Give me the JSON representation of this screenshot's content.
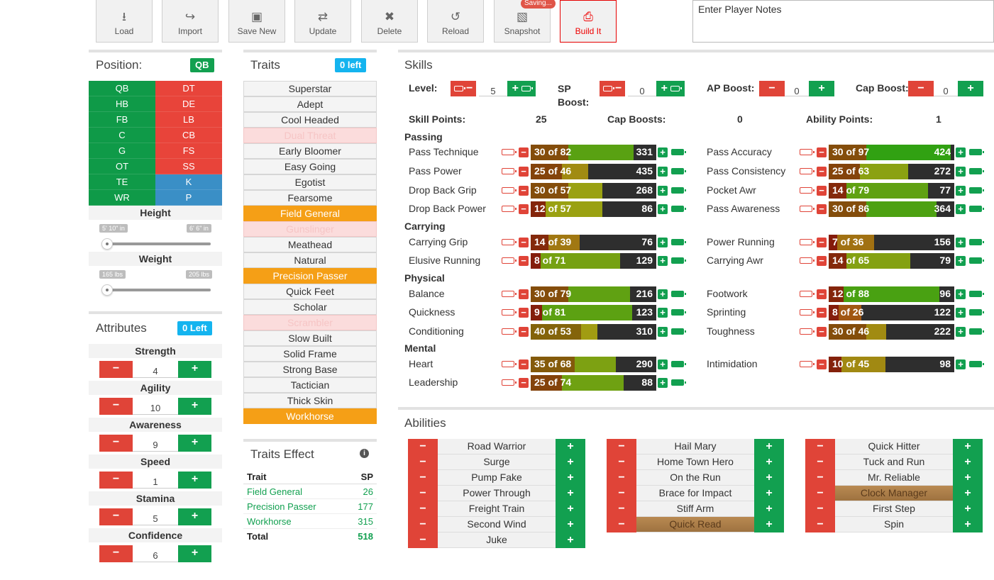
{
  "toolbar": {
    "load": "Load",
    "import": "Import",
    "save_new": "Save New",
    "update": "Update",
    "delete": "Delete",
    "reload": "Reload",
    "snapshot": "Snapshot",
    "build": "Build It",
    "saving": "Saving..."
  },
  "notes": {
    "placeholder": "Enter Player Notes"
  },
  "position": {
    "title": "Position:",
    "selected": "QB",
    "list": [
      [
        "QB",
        "DT"
      ],
      [
        "HB",
        "DE"
      ],
      [
        "FB",
        "LB"
      ],
      [
        "C",
        "CB"
      ],
      [
        "G",
        "FS"
      ],
      [
        "OT",
        "SS"
      ],
      [
        "TE",
        "K"
      ],
      [
        "WR",
        "P"
      ]
    ]
  },
  "height": {
    "label": "Height",
    "min": "5' 10\" in",
    "max": "6' 6\" in"
  },
  "weight": {
    "label": "Weight",
    "min": "165 lbs",
    "max": "205 lbs"
  },
  "attributes": {
    "title": "Attributes",
    "left": "0 Left",
    "items": [
      {
        "label": "Strength",
        "value": "4"
      },
      {
        "label": "Agility",
        "value": "10"
      },
      {
        "label": "Awareness",
        "value": "9"
      },
      {
        "label": "Speed",
        "value": "1"
      },
      {
        "label": "Stamina",
        "value": "5"
      },
      {
        "label": "Confidence",
        "value": "6"
      }
    ]
  },
  "traits": {
    "title": "Traits",
    "left": "0 left",
    "items": [
      {
        "name": "Superstar",
        "state": "n"
      },
      {
        "name": "Adept",
        "state": "n"
      },
      {
        "name": "Cool Headed",
        "state": "n"
      },
      {
        "name": "Dual Threat",
        "state": "d"
      },
      {
        "name": "Early Bloomer",
        "state": "n"
      },
      {
        "name": "Easy Going",
        "state": "n"
      },
      {
        "name": "Egotist",
        "state": "n"
      },
      {
        "name": "Fearsome",
        "state": "n"
      },
      {
        "name": "Field General",
        "state": "s"
      },
      {
        "name": "Gunslinger",
        "state": "d"
      },
      {
        "name": "Meathead",
        "state": "n"
      },
      {
        "name": "Natural",
        "state": "n"
      },
      {
        "name": "Precision Passer",
        "state": "s"
      },
      {
        "name": "Quick Feet",
        "state": "n"
      },
      {
        "name": "Scholar",
        "state": "n"
      },
      {
        "name": "Scrambler",
        "state": "d"
      },
      {
        "name": "Slow Built",
        "state": "n"
      },
      {
        "name": "Solid Frame",
        "state": "n"
      },
      {
        "name": "Strong Base",
        "state": "n"
      },
      {
        "name": "Tactician",
        "state": "n"
      },
      {
        "name": "Thick Skin",
        "state": "n"
      },
      {
        "name": "Workhorse",
        "state": "s"
      }
    ]
  },
  "traits_effect": {
    "title": "Traits Effect",
    "col_trait": "Trait",
    "col_sp": "SP",
    "rows": [
      {
        "trait": "Field General",
        "sp": "26"
      },
      {
        "trait": "Precision Passer",
        "sp": "177"
      },
      {
        "trait": "Workhorse",
        "sp": "315"
      }
    ],
    "total_label": "Total",
    "total": "518"
  },
  "skills": {
    "title": "Skills",
    "level_label": "Level:",
    "level": "5",
    "sp_boost_label": "SP Boost:",
    "sp_boost": "0",
    "ap_boost_label": "AP Boost:",
    "ap_boost": "0",
    "cap_boost_label": "Cap Boost:",
    "cap_boost": "0",
    "skill_points_label": "Skill Points:",
    "skill_points": "25",
    "cap_boosts_label": "Cap Boosts:",
    "cap_boosts": "0",
    "ability_points_label": "Ability Points:",
    "ability_points": "1",
    "categories": [
      "Passing",
      "Carrying",
      "Physical",
      "Mental"
    ],
    "rows": [
      {
        "name": "Pass Technique",
        "cur": 30,
        "cap": 82,
        "cost": "331",
        "col": 0,
        "y": 204
      },
      {
        "name": "Pass Accuracy",
        "cur": 30,
        "cap": 97,
        "cost": "424",
        "col": 1,
        "y": 204
      },
      {
        "name": "Pass Power",
        "cur": 25,
        "cap": 46,
        "cost": "435",
        "col": 0,
        "y": 231
      },
      {
        "name": "Pass Consistency",
        "cur": 25,
        "cap": 63,
        "cost": "272",
        "col": 1,
        "y": 231
      },
      {
        "name": "Drop Back Grip",
        "cur": 30,
        "cap": 57,
        "cost": "268",
        "col": 0,
        "y": 258
      },
      {
        "name": "Pocket Awr",
        "cur": 14,
        "cap": 79,
        "cost": "77",
        "col": 1,
        "y": 258
      },
      {
        "name": "Drop Back Power",
        "cur": 12,
        "cap": 57,
        "cost": "86",
        "col": 0,
        "y": 284
      },
      {
        "name": "Pass Awareness",
        "cur": 30,
        "cap": 86,
        "cost": "364",
        "col": 1,
        "y": 284
      },
      {
        "name": "Carrying Grip",
        "cur": 14,
        "cap": 39,
        "cost": "76",
        "col": 0,
        "y": 331
      },
      {
        "name": "Power Running",
        "cur": 7,
        "cap": 36,
        "cost": "156",
        "col": 1,
        "y": 331
      },
      {
        "name": "Elusive Running",
        "cur": 8,
        "cap": 71,
        "cost": "129",
        "col": 0,
        "y": 357
      },
      {
        "name": "Carrying Awr",
        "cur": 14,
        "cap": 65,
        "cost": "79",
        "col": 1,
        "y": 357
      },
      {
        "name": "Balance",
        "cur": 30,
        "cap": 79,
        "cost": "216",
        "col": 0,
        "y": 404
      },
      {
        "name": "Footwork",
        "cur": 12,
        "cap": 88,
        "cost": "96",
        "col": 1,
        "y": 404
      },
      {
        "name": "Quickness",
        "cur": 9,
        "cap": 81,
        "cost": "123",
        "col": 0,
        "y": 430
      },
      {
        "name": "Sprinting",
        "cur": 8,
        "cap": 26,
        "cost": "122",
        "col": 1,
        "y": 430
      },
      {
        "name": "Conditioning",
        "cur": 40,
        "cap": 53,
        "cost": "310",
        "col": 0,
        "y": 457
      },
      {
        "name": "Toughness",
        "cur": 30,
        "cap": 46,
        "cost": "222",
        "col": 1,
        "y": 457
      },
      {
        "name": "Heart",
        "cur": 35,
        "cap": 68,
        "cost": "290",
        "col": 0,
        "y": 503
      },
      {
        "name": "Intimidation",
        "cur": 10,
        "cap": 45,
        "cost": "98",
        "col": 1,
        "y": 503
      },
      {
        "name": "Leadership",
        "cur": 25,
        "cap": 74,
        "cost": "88",
        "col": 0,
        "y": 529
      }
    ]
  },
  "abilities": {
    "title": "Abilities",
    "cols": [
      [
        {
          "name": "Road Warrior"
        },
        {
          "name": "Surge"
        },
        {
          "name": "Pump Fake"
        },
        {
          "name": "Power Through"
        },
        {
          "name": "Freight Train"
        },
        {
          "name": "Second Wind"
        },
        {
          "name": "Juke"
        }
      ],
      [
        {
          "name": "Hail Mary"
        },
        {
          "name": "Home Town Hero"
        },
        {
          "name": "On the Run"
        },
        {
          "name": "Brace for Impact"
        },
        {
          "name": "Stiff Arm"
        },
        {
          "name": "Quick Read",
          "active": true
        }
      ],
      [
        {
          "name": "Quick Hitter"
        },
        {
          "name": "Tuck and Run"
        },
        {
          "name": "Mr. Reliable"
        },
        {
          "name": "Clock Manager",
          "active": true
        },
        {
          "name": "First Step"
        },
        {
          "name": "Spin"
        }
      ]
    ]
  },
  "colors": {
    "green": "#12a050",
    "red": "#e04438",
    "blue": "#3a8fc6",
    "orange": "#f59f16",
    "cyan": "#14b4ef"
  }
}
